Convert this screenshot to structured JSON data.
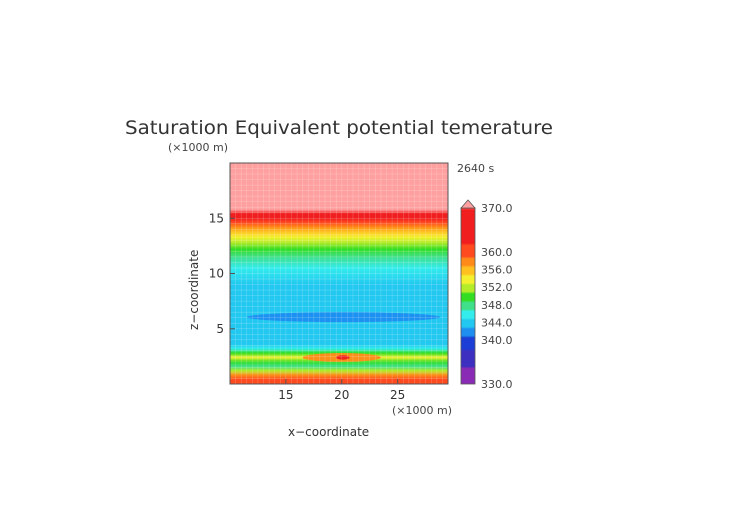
{
  "chart_data": {
    "type": "heatmap",
    "title": "Saturation Equivalent potential temerature",
    "time_label": "2640 s",
    "xlabel": "x−coordinate",
    "ylabel": "z−coordinate",
    "x_unit": "(×1000 m)",
    "z_unit": "(×1000 m)",
    "xlim": [
      10,
      29.5
    ],
    "zlim": [
      0,
      20
    ],
    "x_ticks": [
      "15",
      "20",
      "25"
    ],
    "x_tick_values": [
      15,
      20,
      25
    ],
    "z_ticks": [
      "5",
      "10",
      "15"
    ],
    "z_tick_values": [
      5,
      10,
      15
    ],
    "grid": true,
    "colorbar": {
      "labels": [
        "370.0",
        "360.0",
        "356.0",
        "352.0",
        "348.0",
        "344.0",
        "340.0",
        "330.0"
      ],
      "label_values": [
        370,
        360,
        356,
        352,
        348,
        344,
        340,
        330
      ],
      "range": [
        330,
        370
      ],
      "extend": "max",
      "stops": [
        {
          "value": 330,
          "color": "#8a2bb5"
        },
        {
          "value": 334,
          "color": "#3d2fc0"
        },
        {
          "value": 338,
          "color": "#1b3fd6"
        },
        {
          "value": 341,
          "color": "#1e8ef0"
        },
        {
          "value": 343,
          "color": "#22c8f0"
        },
        {
          "value": 345,
          "color": "#33ecec"
        },
        {
          "value": 347,
          "color": "#40e08a"
        },
        {
          "value": 349,
          "color": "#33dd22"
        },
        {
          "value": 351,
          "color": "#b4ec2a"
        },
        {
          "value": 353,
          "color": "#f4f030"
        },
        {
          "value": 355,
          "color": "#ffc020"
        },
        {
          "value": 357,
          "color": "#ff8a18"
        },
        {
          "value": 359,
          "color": "#ff4a20"
        },
        {
          "value": 362,
          "color": "#f01e1e"
        },
        {
          "value": 370,
          "color": "#ff5a5a"
        },
        {
          "value": 371,
          "color": "#ffa0a0"
        }
      ]
    },
    "z_profile": [
      {
        "z": 0.0,
        "v": 361
      },
      {
        "z": 0.4,
        "v": 360
      },
      {
        "z": 0.8,
        "v": 357
      },
      {
        "z": 1.2,
        "v": 351
      },
      {
        "z": 1.6,
        "v": 347
      },
      {
        "z": 2.0,
        "v": 349
      },
      {
        "z": 2.4,
        "v": 353
      },
      {
        "z": 2.8,
        "v": 349
      },
      {
        "z": 3.2,
        "v": 346
      },
      {
        "z": 3.6,
        "v": 344.5
      },
      {
        "z": 4.5,
        "v": 344
      },
      {
        "z": 5.5,
        "v": 343.5
      },
      {
        "z": 6.5,
        "v": 343.5
      },
      {
        "z": 7.5,
        "v": 344
      },
      {
        "z": 9.0,
        "v": 344.5
      },
      {
        "z": 10.5,
        "v": 345
      },
      {
        "z": 11.5,
        "v": 347
      },
      {
        "z": 12.2,
        "v": 349
      },
      {
        "z": 12.8,
        "v": 351
      },
      {
        "z": 13.3,
        "v": 353
      },
      {
        "z": 13.8,
        "v": 355
      },
      {
        "z": 14.2,
        "v": 357
      },
      {
        "z": 14.6,
        "v": 359
      },
      {
        "z": 15.0,
        "v": 362
      },
      {
        "z": 15.4,
        "v": 368
      },
      {
        "z": 15.8,
        "v": 371
      },
      {
        "z": 20.0,
        "v": 371
      }
    ],
    "features": [
      {
        "name": "mid-level-blue-band",
        "x_range": [
          11.5,
          28.8
        ],
        "z_range": [
          5.6,
          6.5
        ],
        "value": 342
      },
      {
        "name": "low-level-orange-blob",
        "x_range": [
          16.5,
          23.5
        ],
        "z_range": [
          2.0,
          2.8
        ],
        "value": 357
      },
      {
        "name": "low-level-red-core",
        "x_range": [
          19.5,
          20.7
        ],
        "z_range": [
          2.2,
          2.6
        ],
        "value": 362
      }
    ]
  }
}
